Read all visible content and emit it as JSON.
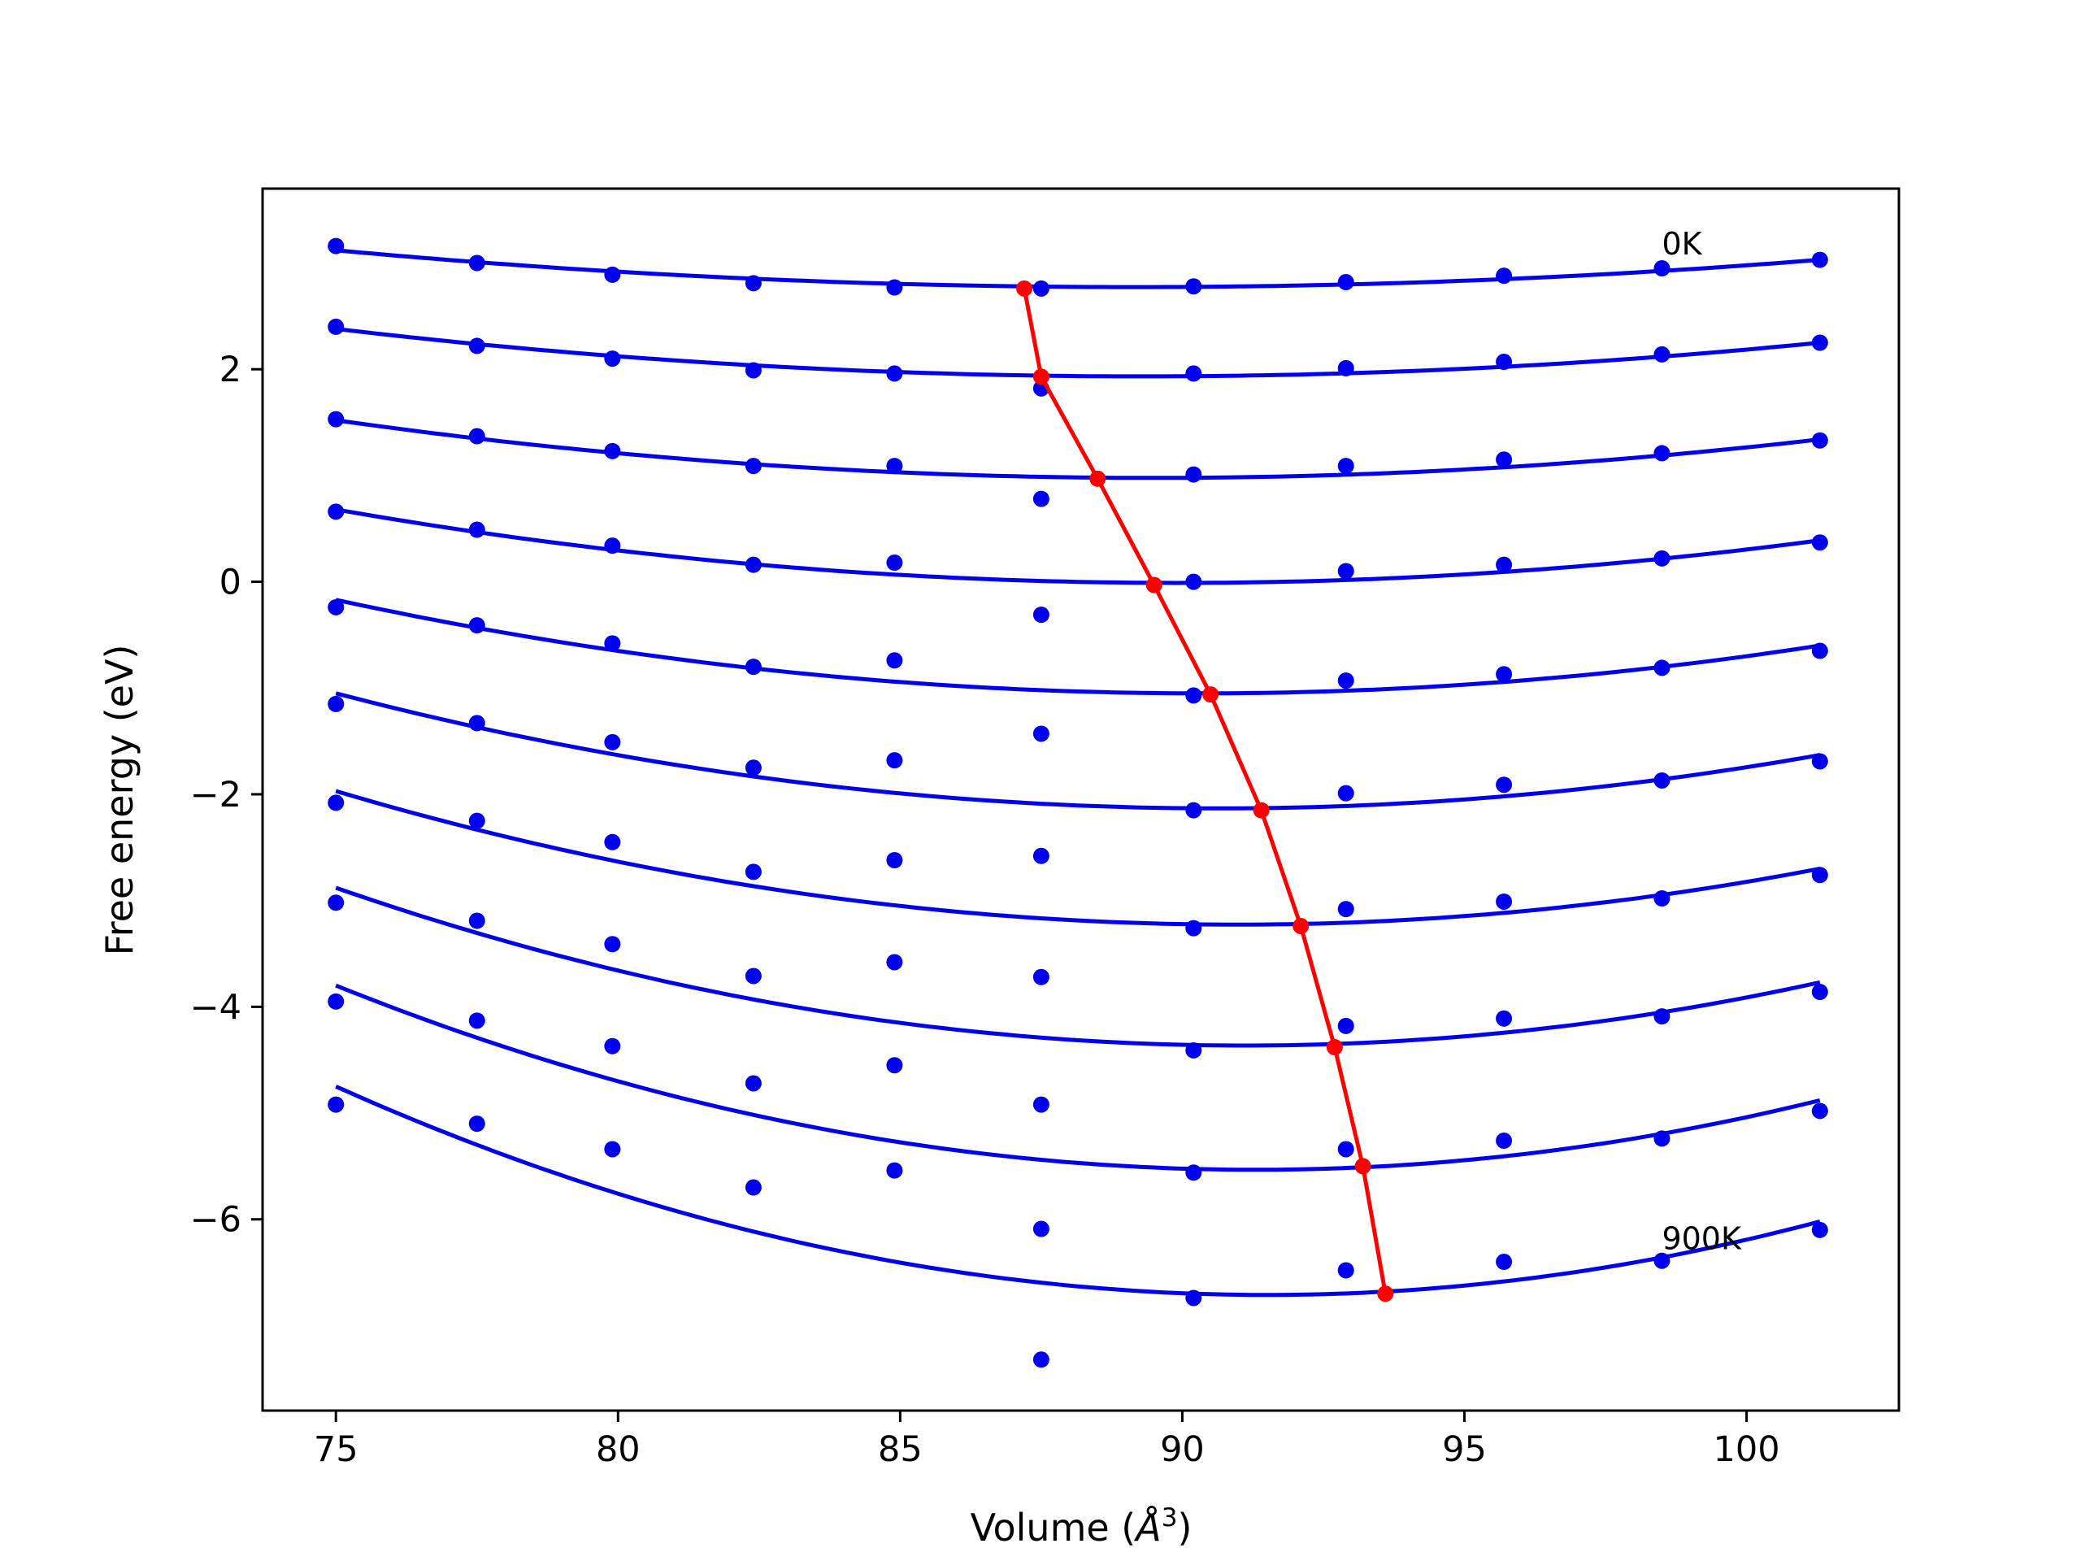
{
  "chart_data": {
    "type": "line",
    "title": "",
    "xlabel": "Volume (",
    "xlabel_unit": "Å",
    "xlabel_sup": "3",
    "xlabel_end": ")",
    "ylabel": "Free energy (eV)",
    "xlim": [
      73.7,
      102.7
    ],
    "ylim": [
      -7.8,
      3.7
    ],
    "xticks": [
      75,
      80,
      85,
      90,
      95,
      100
    ],
    "xtick_labels": [
      "75",
      "80",
      "85",
      "90",
      "95",
      "100"
    ],
    "yticks": [
      2,
      0,
      -2,
      -4,
      -6
    ],
    "ytick_labels": [
      "2",
      "0",
      "−2",
      "−4",
      "−6"
    ],
    "grid": false,
    "colors": {
      "points": "#0000ee",
      "fits": "#0000ee",
      "minimum": "#ff0000"
    },
    "annotations": [
      {
        "text": "0K",
        "x": 98.5,
        "y": 3.08
      },
      {
        "text": "900K",
        "x": 98.5,
        "y": -6.28
      }
    ],
    "volumes": [
      75.0,
      77.5,
      79.9,
      82.4,
      84.9,
      87.5,
      90.2,
      92.9,
      95.7,
      98.5,
      101.3
    ],
    "series": [
      {
        "values": [
          3.16,
          3.0,
          2.89,
          2.81,
          2.77,
          2.76,
          2.78,
          2.82,
          2.88,
          2.95,
          3.03
        ],
        "fit": [
          3.12,
          2.78,
          3.03
        ]
      },
      {
        "values": [
          2.4,
          2.22,
          2.1,
          1.99,
          1.96,
          1.82,
          1.96,
          2.01,
          2.07,
          2.14,
          2.25
        ],
        "fit": [
          2.38,
          1.94,
          2.25
        ]
      },
      {
        "values": [
          1.53,
          1.37,
          1.23,
          1.09,
          1.09,
          0.78,
          1.01,
          1.09,
          1.15,
          1.21,
          1.33
        ],
        "fit": [
          1.52,
          0.98,
          1.34
        ]
      },
      {
        "values": [
          0.66,
          0.49,
          0.34,
          0.16,
          0.18,
          -0.31,
          0.0,
          0.1,
          0.16,
          0.22,
          0.37
        ],
        "fit": [
          0.68,
          -0.01,
          0.39
        ]
      },
      {
        "values": [
          -0.24,
          -0.41,
          -0.58,
          -0.8,
          -0.74,
          -1.43,
          -1.07,
          -0.93,
          -0.87,
          -0.81,
          -0.65
        ],
        "fit": [
          -0.17,
          -1.05,
          -0.6
        ]
      },
      {
        "values": [
          -1.15,
          -1.33,
          -1.51,
          -1.75,
          -1.68,
          -2.58,
          -2.15,
          -1.99,
          -1.91,
          -1.87,
          -1.69
        ],
        "fit": [
          -1.05,
          -2.13,
          -1.63
        ]
      },
      {
        "values": [
          -2.08,
          -2.25,
          -2.45,
          -2.73,
          -2.62,
          -3.72,
          -3.26,
          -3.08,
          -3.01,
          -2.98,
          -2.76
        ],
        "fit": [
          -1.97,
          -3.22,
          -2.7
        ]
      },
      {
        "values": [
          -3.02,
          -3.19,
          -3.41,
          -3.71,
          -3.58,
          -4.92,
          -4.41,
          -4.18,
          -4.11,
          -4.09,
          -3.86
        ],
        "fit": [
          -2.88,
          -4.35,
          -3.77
        ]
      },
      {
        "values": [
          -3.95,
          -4.13,
          -4.37,
          -4.72,
          -4.55,
          -6.09,
          -5.56,
          -5.34,
          -5.26,
          -5.24,
          -4.98
        ],
        "fit": [
          -3.8,
          -5.51,
          -4.88
        ]
      },
      {
        "values": [
          -4.92,
          -5.1,
          -5.34,
          -5.7,
          -5.54,
          -7.32,
          -6.74,
          -6.48,
          -6.4,
          -6.39,
          -6.1
        ],
        "fit": [
          -4.75,
          -6.68,
          -6.02
        ]
      }
    ],
    "minimum_line": {
      "x": [
        87.2,
        87.5,
        88.5,
        89.5,
        90.5,
        91.4,
        92.1,
        92.7,
        93.2,
        93.6
      ],
      "y": [
        2.76,
        1.93,
        0.97,
        -0.03,
        -1.06,
        -2.15,
        -3.24,
        -4.38,
        -5.5,
        -6.7
      ]
    }
  }
}
